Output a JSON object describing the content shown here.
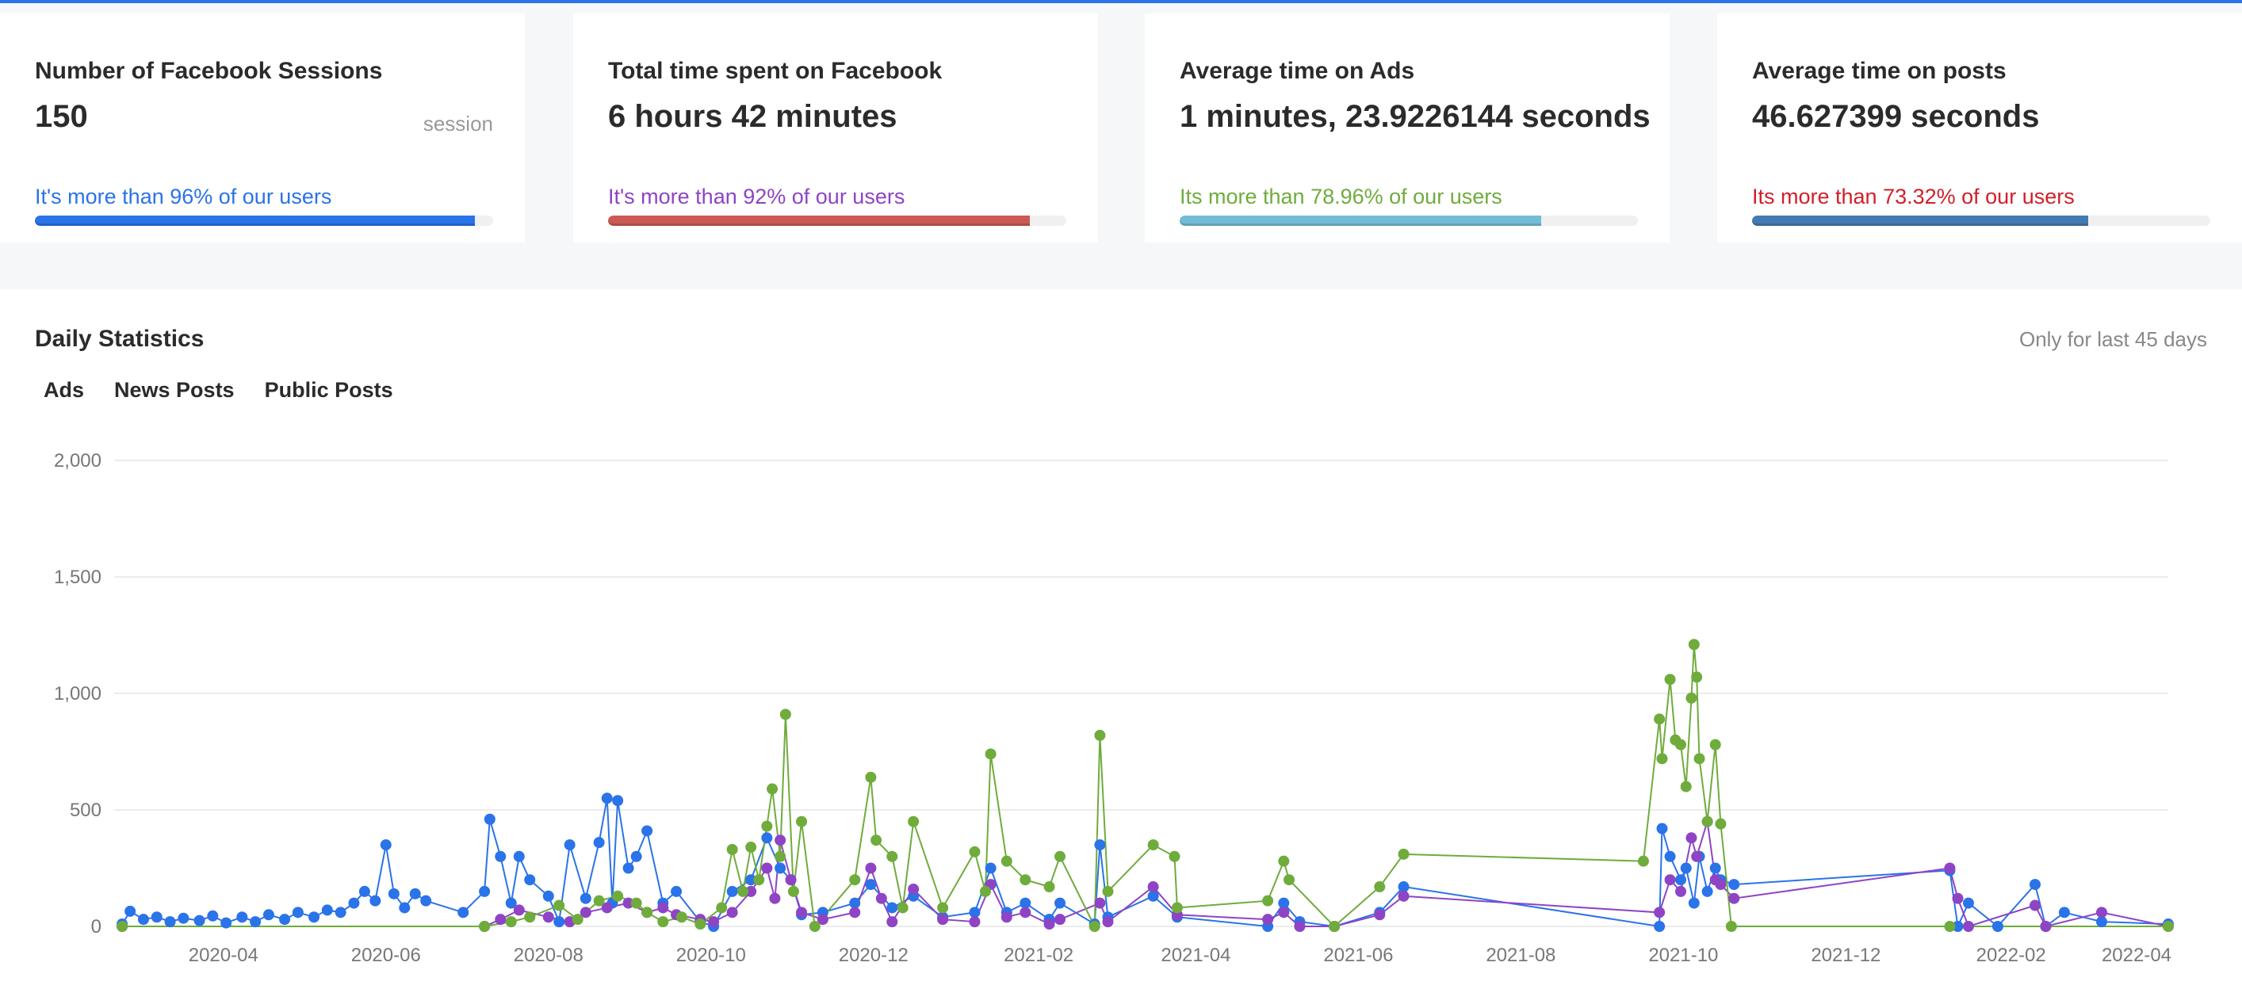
{
  "cards": [
    {
      "title": "Number of Facebook Sessions",
      "value": "150",
      "unit": "session",
      "sub": "It's more than 96% of our users",
      "percent": 96,
      "sub_color": "#2a73e8",
      "bar_color": "#2a73e8"
    },
    {
      "title": "Total time spent on Facebook",
      "value": "6 hours 42 minutes",
      "sub": "It's more than 92% of our users",
      "percent": 92,
      "sub_color": "#8e44c4",
      "bar_color": "#cb5a55"
    },
    {
      "title": "Average time on Ads",
      "value": "1 minutes, 23.9226144 seconds",
      "sub": "Its more than 78.96% of our users",
      "percent": 78.96,
      "sub_color": "#6fac3c",
      "bar_color": "#73bcd8"
    },
    {
      "title": "Average time on posts",
      "value": "46.627399 seconds",
      "sub": "Its more than 73.32% of our users",
      "percent": 73.32,
      "sub_color": "#d0202a",
      "bar_color": "#447ab2"
    }
  ],
  "panel": {
    "title": "Daily Statistics",
    "note": "Only for last 45 days"
  },
  "chart_data": {
    "type": "line",
    "title": "Daily Statistics",
    "xlabel": "",
    "ylabel": "",
    "xlim": [
      "2020-02-20",
      "2022-04-01"
    ],
    "ylim": [
      0,
      2000
    ],
    "yticks": [
      0,
      500,
      1000,
      1500,
      2000
    ],
    "ytick_labels": [
      "0",
      "500",
      "1,000",
      "1,500",
      "2,000"
    ],
    "xticks": [
      "2020-04-01",
      "2020-06-01",
      "2020-08-01",
      "2020-10-01",
      "2020-12-01",
      "2021-02-01",
      "2021-04-01",
      "2021-06-01",
      "2021-08-01",
      "2021-10-01",
      "2021-12-01",
      "2022-02-01",
      "2022-04-01"
    ],
    "xtick_labels": [
      "2020-04",
      "2020-06",
      "2020-08",
      "2020-10",
      "2020-12",
      "2021-02",
      "2021-04",
      "2021-06",
      "2021-08",
      "2021-10",
      "2021-12",
      "2022-02",
      "2022-04"
    ],
    "grid": true,
    "legend_position": "top-left",
    "series": [
      {
        "name": "Ads",
        "color": "#2a73e8",
        "points": [
          [
            "2020-02-23",
            10
          ],
          [
            "2020-02-26",
            65
          ],
          [
            "2020-03-02",
            30
          ],
          [
            "2020-03-07",
            40
          ],
          [
            "2020-03-12",
            20
          ],
          [
            "2020-03-17",
            35
          ],
          [
            "2020-03-23",
            25
          ],
          [
            "2020-03-28",
            45
          ],
          [
            "2020-04-02",
            15
          ],
          [
            "2020-04-08",
            40
          ],
          [
            "2020-04-13",
            20
          ],
          [
            "2020-04-18",
            50
          ],
          [
            "2020-04-24",
            30
          ],
          [
            "2020-04-29",
            60
          ],
          [
            "2020-05-05",
            40
          ],
          [
            "2020-05-10",
            70
          ],
          [
            "2020-05-15",
            60
          ],
          [
            "2020-05-20",
            100
          ],
          [
            "2020-05-24",
            150
          ],
          [
            "2020-05-28",
            110
          ],
          [
            "2020-06-01",
            350
          ],
          [
            "2020-06-04",
            140
          ],
          [
            "2020-06-08",
            80
          ],
          [
            "2020-06-12",
            140
          ],
          [
            "2020-06-16",
            110
          ],
          [
            "2020-06-30",
            60
          ],
          [
            "2020-07-08",
            150
          ],
          [
            "2020-07-10",
            460
          ],
          [
            "2020-07-14",
            300
          ],
          [
            "2020-07-18",
            100
          ],
          [
            "2020-07-21",
            300
          ],
          [
            "2020-07-25",
            200
          ],
          [
            "2020-08-01",
            130
          ],
          [
            "2020-08-05",
            20
          ],
          [
            "2020-08-09",
            350
          ],
          [
            "2020-08-15",
            120
          ],
          [
            "2020-08-20",
            360
          ],
          [
            "2020-08-23",
            550
          ],
          [
            "2020-08-25",
            100
          ],
          [
            "2020-08-27",
            540
          ],
          [
            "2020-08-31",
            250
          ],
          [
            "2020-09-03",
            300
          ],
          [
            "2020-09-07",
            410
          ],
          [
            "2020-09-13",
            100
          ],
          [
            "2020-09-18",
            150
          ],
          [
            "2020-09-27",
            20
          ],
          [
            "2020-10-02",
            0
          ],
          [
            "2020-10-09",
            150
          ],
          [
            "2020-10-16",
            200
          ],
          [
            "2020-10-22",
            380
          ],
          [
            "2020-10-27",
            250
          ],
          [
            "2020-10-31",
            200
          ],
          [
            "2020-11-04",
            50
          ],
          [
            "2020-11-12",
            60
          ],
          [
            "2020-11-24",
            100
          ],
          [
            "2020-11-30",
            180
          ],
          [
            "2020-12-08",
            80
          ],
          [
            "2020-12-16",
            130
          ],
          [
            "2020-12-27",
            40
          ],
          [
            "2021-01-08",
            60
          ],
          [
            "2021-01-14",
            250
          ],
          [
            "2021-01-20",
            60
          ],
          [
            "2021-01-27",
            100
          ],
          [
            "2021-02-05",
            30
          ],
          [
            "2021-02-09",
            100
          ],
          [
            "2021-02-22",
            10
          ],
          [
            "2021-02-24",
            350
          ],
          [
            "2021-02-27",
            40
          ],
          [
            "2021-03-16",
            130
          ],
          [
            "2021-03-25",
            40
          ],
          [
            "2021-04-28",
            0
          ],
          [
            "2021-05-04",
            100
          ],
          [
            "2021-05-10",
            20
          ],
          [
            "2021-05-23",
            0
          ],
          [
            "2021-06-09",
            60
          ],
          [
            "2021-06-18",
            170
          ],
          [
            "2021-09-22",
            0
          ],
          [
            "2021-09-23",
            420
          ],
          [
            "2021-09-26",
            300
          ],
          [
            "2021-09-30",
            200
          ],
          [
            "2021-10-02",
            250
          ],
          [
            "2021-10-05",
            100
          ],
          [
            "2021-10-07",
            300
          ],
          [
            "2021-10-10",
            150
          ],
          [
            "2021-10-13",
            250
          ],
          [
            "2021-10-15",
            200
          ],
          [
            "2021-10-20",
            180
          ],
          [
            "2022-01-09",
            240
          ],
          [
            "2022-01-12",
            0
          ],
          [
            "2022-01-16",
            100
          ],
          [
            "2022-01-27",
            0
          ],
          [
            "2022-02-10",
            180
          ],
          [
            "2022-02-14",
            0
          ],
          [
            "2022-02-21",
            60
          ],
          [
            "2022-03-07",
            20
          ],
          [
            "2022-04-01",
            10
          ]
        ]
      },
      {
        "name": "News Posts",
        "color": "#8e44c4",
        "points": [
          [
            "2020-02-23",
            0
          ],
          [
            "2020-07-08",
            0
          ],
          [
            "2020-07-14",
            30
          ],
          [
            "2020-07-21",
            70
          ],
          [
            "2020-08-01",
            40
          ],
          [
            "2020-08-09",
            20
          ],
          [
            "2020-08-15",
            60
          ],
          [
            "2020-08-23",
            80
          ],
          [
            "2020-08-31",
            100
          ],
          [
            "2020-09-07",
            60
          ],
          [
            "2020-09-13",
            80
          ],
          [
            "2020-09-18",
            50
          ],
          [
            "2020-09-27",
            30
          ],
          [
            "2020-10-02",
            20
          ],
          [
            "2020-10-09",
            60
          ],
          [
            "2020-10-16",
            150
          ],
          [
            "2020-10-22",
            250
          ],
          [
            "2020-10-25",
            120
          ],
          [
            "2020-10-27",
            370
          ],
          [
            "2020-10-31",
            200
          ],
          [
            "2020-11-04",
            60
          ],
          [
            "2020-11-12",
            30
          ],
          [
            "2020-11-24",
            60
          ],
          [
            "2020-11-30",
            250
          ],
          [
            "2020-12-04",
            120
          ],
          [
            "2020-12-08",
            20
          ],
          [
            "2020-12-16",
            160
          ],
          [
            "2020-12-27",
            30
          ],
          [
            "2021-01-08",
            20
          ],
          [
            "2021-01-14",
            180
          ],
          [
            "2021-01-20",
            40
          ],
          [
            "2021-01-27",
            60
          ],
          [
            "2021-02-05",
            10
          ],
          [
            "2021-02-09",
            30
          ],
          [
            "2021-02-24",
            100
          ],
          [
            "2021-02-27",
            20
          ],
          [
            "2021-03-16",
            170
          ],
          [
            "2021-03-25",
            50
          ],
          [
            "2021-04-28",
            30
          ],
          [
            "2021-05-04",
            60
          ],
          [
            "2021-05-10",
            0
          ],
          [
            "2021-05-23",
            0
          ],
          [
            "2021-06-09",
            50
          ],
          [
            "2021-06-18",
            130
          ],
          [
            "2021-09-22",
            60
          ],
          [
            "2021-09-26",
            200
          ],
          [
            "2021-09-30",
            150
          ],
          [
            "2021-10-04",
            380
          ],
          [
            "2021-10-06",
            300
          ],
          [
            "2021-10-10",
            450
          ],
          [
            "2021-10-13",
            200
          ],
          [
            "2021-10-15",
            180
          ],
          [
            "2021-10-20",
            120
          ],
          [
            "2022-01-09",
            250
          ],
          [
            "2022-01-12",
            120
          ],
          [
            "2022-01-16",
            0
          ],
          [
            "2022-02-10",
            90
          ],
          [
            "2022-02-14",
            0
          ],
          [
            "2022-03-07",
            60
          ],
          [
            "2022-04-01",
            0
          ]
        ]
      },
      {
        "name": "Public Posts",
        "color": "#6fac3c",
        "points": [
          [
            "2020-02-23",
            0
          ],
          [
            "2020-07-08",
            0
          ],
          [
            "2020-07-18",
            20
          ],
          [
            "2020-07-25",
            40
          ],
          [
            "2020-08-05",
            90
          ],
          [
            "2020-08-12",
            30
          ],
          [
            "2020-08-20",
            110
          ],
          [
            "2020-08-27",
            130
          ],
          [
            "2020-09-03",
            100
          ],
          [
            "2020-09-07",
            60
          ],
          [
            "2020-09-13",
            20
          ],
          [
            "2020-09-20",
            40
          ],
          [
            "2020-09-27",
            10
          ],
          [
            "2020-10-05",
            80
          ],
          [
            "2020-10-09",
            330
          ],
          [
            "2020-10-13",
            150
          ],
          [
            "2020-10-16",
            340
          ],
          [
            "2020-10-19",
            200
          ],
          [
            "2020-10-22",
            430
          ],
          [
            "2020-10-24",
            590
          ],
          [
            "2020-10-27",
            300
          ],
          [
            "2020-10-29",
            910
          ],
          [
            "2020-11-01",
            150
          ],
          [
            "2020-11-04",
            450
          ],
          [
            "2020-11-09",
            0
          ],
          [
            "2020-11-24",
            200
          ],
          [
            "2020-11-30",
            640
          ],
          [
            "2020-12-02",
            370
          ],
          [
            "2020-12-08",
            300
          ],
          [
            "2020-12-12",
            80
          ],
          [
            "2020-12-16",
            450
          ],
          [
            "2020-12-27",
            80
          ],
          [
            "2021-01-08",
            320
          ],
          [
            "2021-01-12",
            150
          ],
          [
            "2021-01-14",
            740
          ],
          [
            "2021-01-20",
            280
          ],
          [
            "2021-01-27",
            200
          ],
          [
            "2021-02-05",
            170
          ],
          [
            "2021-02-09",
            300
          ],
          [
            "2021-02-22",
            0
          ],
          [
            "2021-02-24",
            820
          ],
          [
            "2021-02-27",
            150
          ],
          [
            "2021-03-16",
            350
          ],
          [
            "2021-03-24",
            300
          ],
          [
            "2021-03-25",
            80
          ],
          [
            "2021-04-28",
            110
          ],
          [
            "2021-05-04",
            280
          ],
          [
            "2021-05-06",
            200
          ],
          [
            "2021-05-23",
            0
          ],
          [
            "2021-06-09",
            170
          ],
          [
            "2021-06-18",
            310
          ],
          [
            "2021-09-16",
            280
          ],
          [
            "2021-09-22",
            890
          ],
          [
            "2021-09-23",
            720
          ],
          [
            "2021-09-26",
            1060
          ],
          [
            "2021-09-28",
            800
          ],
          [
            "2021-09-30",
            780
          ],
          [
            "2021-10-02",
            600
          ],
          [
            "2021-10-04",
            980
          ],
          [
            "2021-10-05",
            1210
          ],
          [
            "2021-10-06",
            1070
          ],
          [
            "2021-10-07",
            720
          ],
          [
            "2021-10-10",
            450
          ],
          [
            "2021-10-13",
            780
          ],
          [
            "2021-10-15",
            440
          ],
          [
            "2021-10-19",
            0
          ],
          [
            "2022-01-09",
            0
          ],
          [
            "2022-04-01",
            0
          ]
        ]
      }
    ]
  }
}
